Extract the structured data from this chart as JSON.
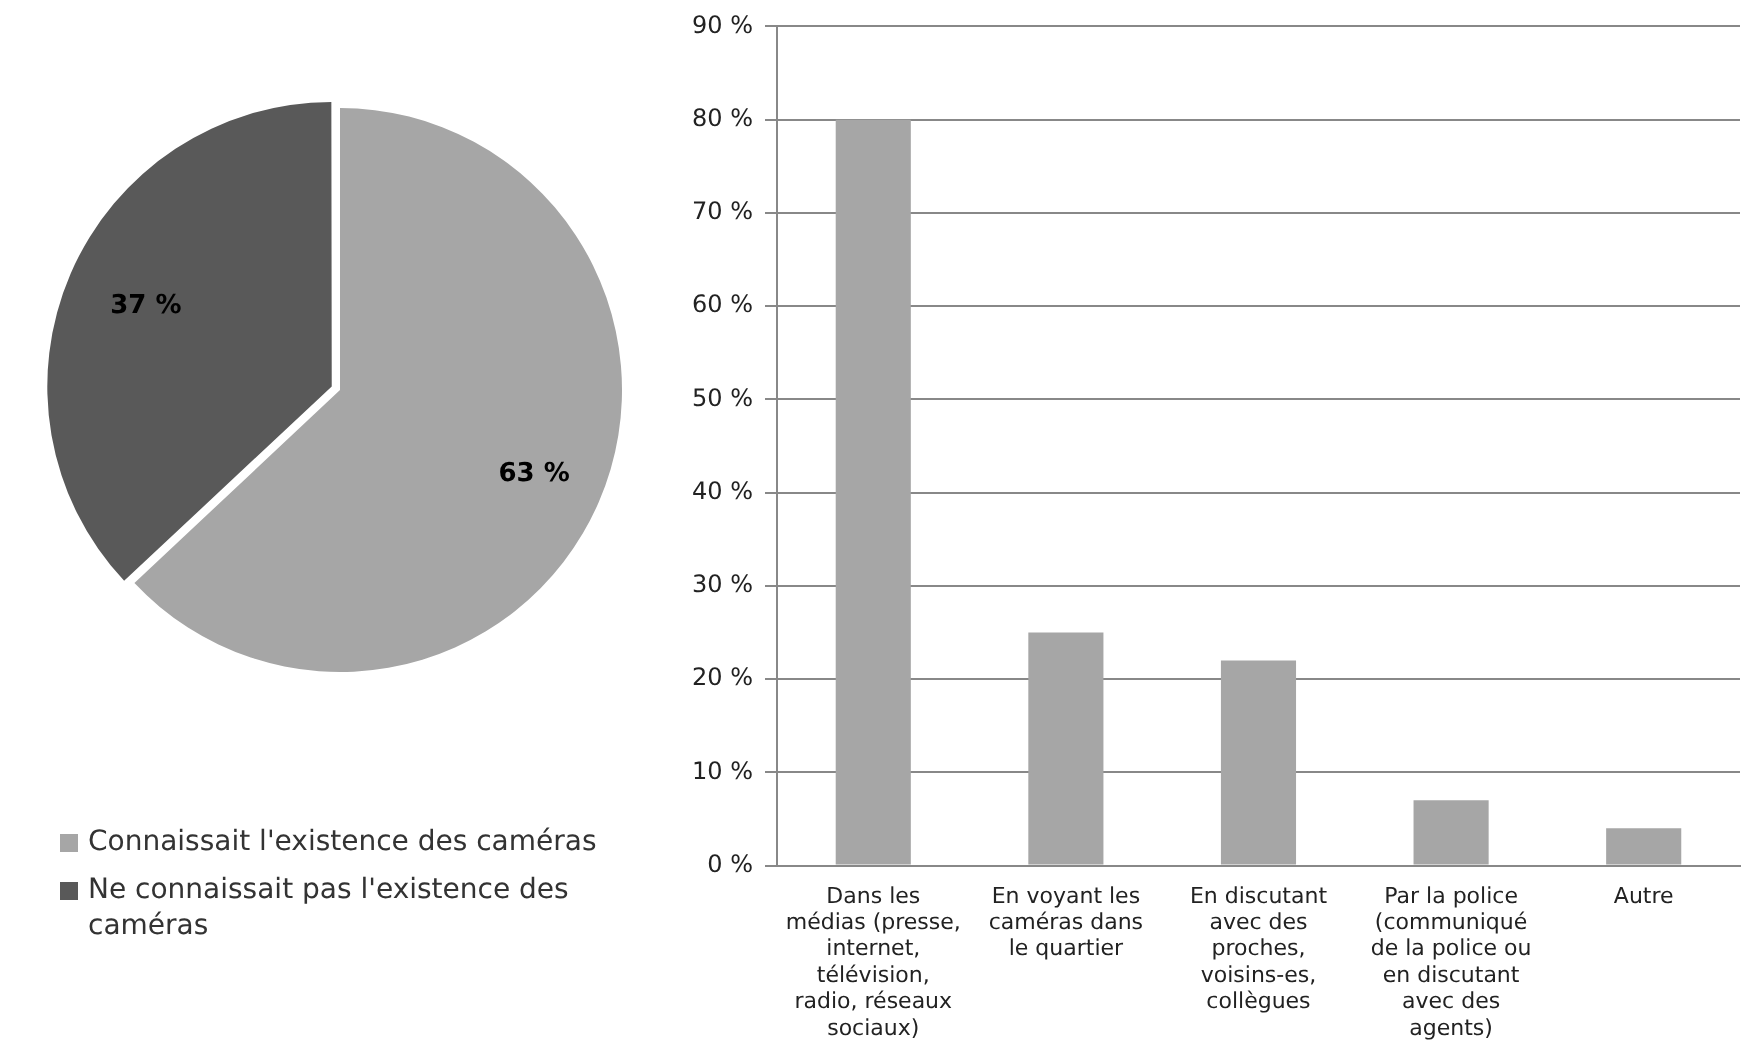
{
  "chart_data": [
    {
      "type": "pie",
      "categories": [
        "Connaissait l'existence des caméras",
        "Ne connaissait pas l'existence des caméras"
      ],
      "values": [
        63,
        37
      ],
      "colors": [
        "#a6a6a6",
        "#595959"
      ],
      "value_labels": [
        "63 %",
        "37 %"
      ],
      "legend": "bottom"
    },
    {
      "type": "bar",
      "categories": [
        "Dans les médias (presse, internet, télévision, radio, réseaux sociaux)",
        "En voyant les caméras dans le quartier",
        "En discutant avec des proches, voisins-es, collègues",
        "Par la police (communiqué de la police ou en discutant avec des agents)",
        "Autre"
      ],
      "values": [
        80,
        25,
        22,
        7,
        4
      ],
      "color": "#a6a6a6",
      "ylim": [
        0,
        90
      ],
      "yticks": [
        {
          "value": 0,
          "label": "0 %"
        },
        {
          "value": 10,
          "label": "10 %"
        },
        {
          "value": 20,
          "label": "20 %"
        },
        {
          "value": 30,
          "label": "30 %"
        },
        {
          "value": 40,
          "label": "40 %"
        },
        {
          "value": 50,
          "label": "50 %"
        },
        {
          "value": 60,
          "label": "60 %"
        },
        {
          "value": 70,
          "label": "70 %"
        },
        {
          "value": 80,
          "label": "80 %"
        },
        {
          "value": 90,
          "label": "90 %"
        }
      ],
      "grid": "y",
      "legend": false
    }
  ]
}
